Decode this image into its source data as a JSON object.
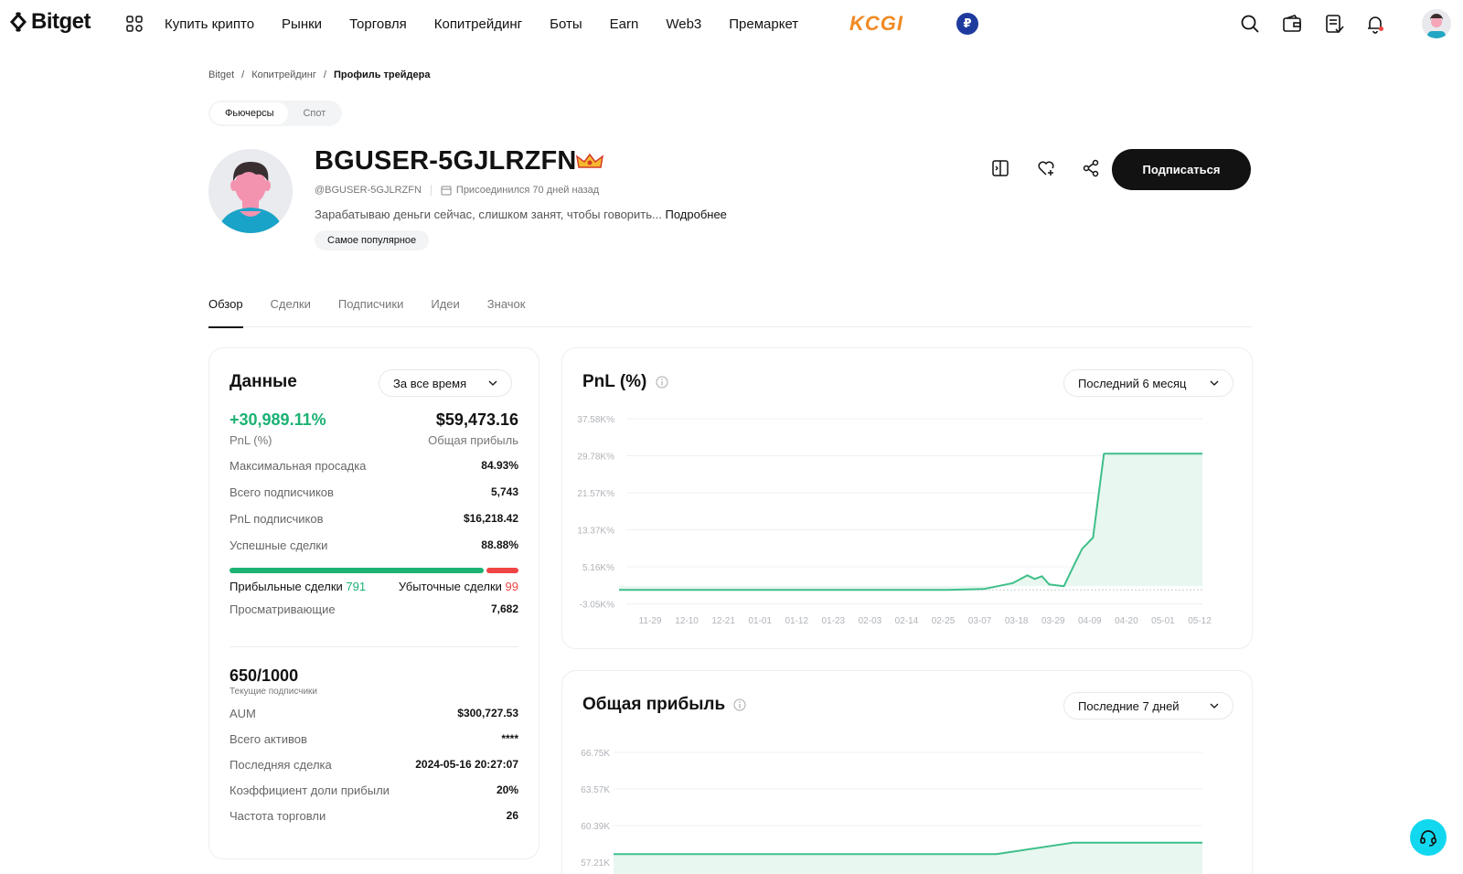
{
  "brand": {
    "name": "Bitget"
  },
  "nav": {
    "links": [
      "Купить крипто",
      "Рынки",
      "Торговля",
      "Копитрейдинг",
      "Боты",
      "Earn",
      "Web3",
      "Премаркет"
    ],
    "promo": "KCGI",
    "currency": "₽"
  },
  "breadcrumb": [
    "Bitget",
    "/",
    "Копитрейдинг",
    "/",
    "Профиль трейдера"
  ],
  "market_toggle": {
    "futures": "Фьючерсы",
    "spot": "Спот"
  },
  "profile": {
    "username": "BGUSER-5GJLRZFN",
    "handle": "@BGUSER-5GJLRZFN",
    "joined": "Присоединился 70 дней назад",
    "bio": "Зарабатываю деньги сейчас, слишком занят, чтобы говорить... ",
    "more": "Подробнее",
    "tag": "Самое популярное",
    "subscribe": "Подписаться"
  },
  "tabs": [
    "Обзор",
    "Сделки",
    "Подписчики",
    "Идеи",
    "Значок"
  ],
  "data_card": {
    "title": "Данные",
    "period": "За все время",
    "pnl_value": "+30,989.11%",
    "pnl_label": "PnL (%)",
    "profit_value": "$59,473.16",
    "profit_label": "Общая прибыль",
    "rows": [
      {
        "k": "Максимальная просадка",
        "v": "84.93%"
      },
      {
        "k": "Всего подписчиков",
        "v": "5,743"
      },
      {
        "k": "PnL подписчиков",
        "v": "$16,218.42"
      },
      {
        "k": "Успешные сделки",
        "v": "88.88%"
      }
    ],
    "win_ratio": 0.8888,
    "profitable_label": "Прибыльные сделки",
    "profitable_count": "791",
    "losing_label": "Убыточные сделки",
    "losing_count": "99",
    "viewers_label": "Просматривающие",
    "viewers_value": "7,682",
    "slots": "650/1000",
    "slots_label": "Текущие подписчики",
    "rows2": [
      {
        "k": "AUM",
        "v": "$300,727.53"
      },
      {
        "k": "Всего активов",
        "v": "****"
      },
      {
        "k": "Последняя сделка",
        "v": "2024-05-16 20:27:07"
      },
      {
        "k": "Коэффициент доли прибыли",
        "v": "20%"
      },
      {
        "k": "Частота торговли",
        "v": "26"
      }
    ]
  },
  "pnl_card": {
    "title": "PnL (%)",
    "period": "Последний 6 месяц"
  },
  "profit_card": {
    "title": "Общая прибыль",
    "period": "Последние 7 дней"
  },
  "colors": {
    "green": "#1bb273",
    "red": "#f04545",
    "dark": "#121212",
    "accent_kcgi": "#f08a24",
    "support": "#12d8ef"
  },
  "chart_data": [
    {
      "type": "area",
      "title": "PnL (%)",
      "x": [
        "11-29",
        "12-10",
        "12-21",
        "01-01",
        "01-12",
        "01-23",
        "02-03",
        "02-14",
        "02-25",
        "03-07",
        "03-18",
        "03-29",
        "04-09",
        "04-20",
        "05-01",
        "05-12"
      ],
      "y_ticks": [
        "37.58K%",
        "29.78K%",
        "21.57K%",
        "13.37K%",
        "5.16K%",
        "-3.05K%"
      ],
      "ylim": [
        -3050,
        37580
      ],
      "series": [
        {
          "values": [
            [
              0,
              0
            ],
            [
              9,
              0
            ],
            [
              10,
              200
            ],
            [
              10.8,
              1500
            ],
            [
              11.2,
              3200
            ],
            [
              11.4,
              2400
            ],
            [
              11.6,
              3000
            ],
            [
              11.8,
              1200
            ],
            [
              12.2,
              800
            ],
            [
              12.5,
              5800
            ],
            [
              12.7,
              9000
            ],
            [
              13.0,
              11500
            ],
            [
              13.3,
              29900
            ],
            [
              16.0,
              29900
            ]
          ]
        }
      ]
    },
    {
      "type": "area",
      "title": "Общая прибыль",
      "y_ticks": [
        "66.75K",
        "63.57K",
        "60.39K",
        "57.21K"
      ],
      "ylim": [
        57210,
        66750
      ],
      "series": [
        {
          "values": [
            [
              0,
              57900
            ],
            [
              0.65,
              57900
            ],
            [
              0.78,
              58900
            ],
            [
              1.0,
              58900
            ]
          ]
        }
      ]
    }
  ]
}
